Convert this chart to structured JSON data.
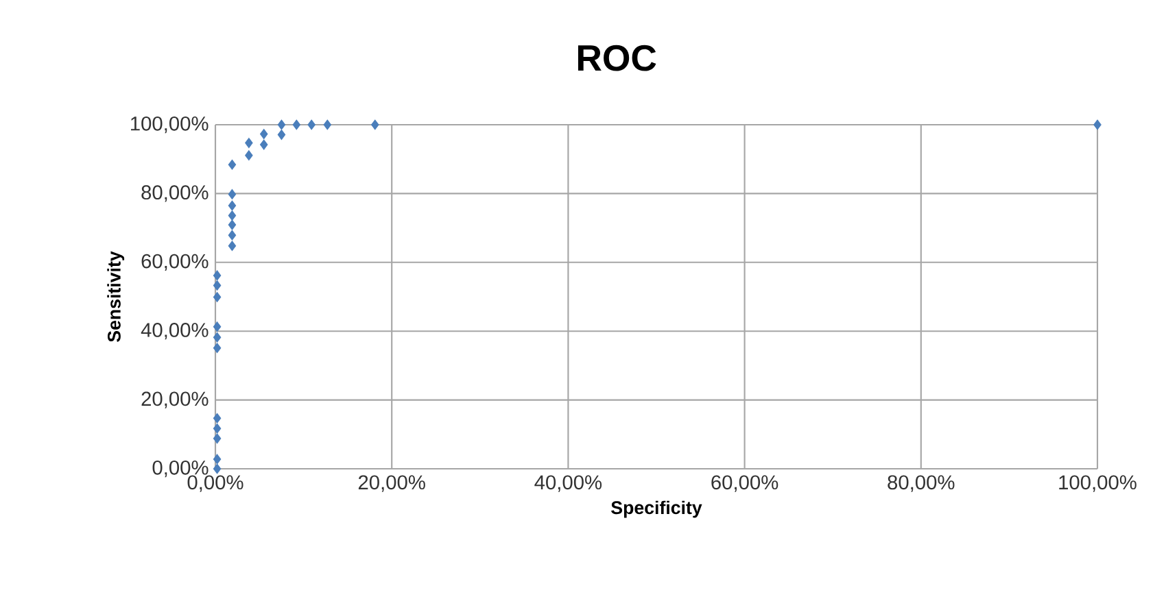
{
  "chart_data": {
    "type": "scatter",
    "title": "ROC",
    "xlabel": "Specificity",
    "ylabel": "Sensitivity",
    "color": "#4a7ebb",
    "marker": "diamond",
    "grid": true,
    "x": [
      0.2,
      0.2,
      0.2,
      0.2,
      0.2,
      0.2,
      0.2,
      0.2,
      0.2,
      0.2,
      0.2,
      1.9,
      1.9,
      1.9,
      1.9,
      1.9,
      1.9,
      1.9,
      3.8,
      3.8,
      5.5,
      5.5,
      7.5,
      7.5,
      9.2,
      10.9,
      12.7,
      18.1,
      100
    ],
    "values": [
      0,
      2.8,
      8.8,
      11.7,
      14.7,
      35.1,
      38.2,
      41.3,
      49.9,
      53.3,
      56.2,
      64.8,
      67.9,
      70.9,
      73.6,
      76.5,
      79.8,
      88.4,
      91.1,
      94.7,
      94.2,
      97.3,
      97.1,
      100,
      100,
      100,
      100,
      100,
      100
    ],
    "xlim": [
      0,
      100
    ],
    "ylim": [
      0,
      100
    ],
    "xticks": [
      {
        "value": 0,
        "label": "0,00%"
      },
      {
        "value": 20,
        "label": "20,00%"
      },
      {
        "value": 40,
        "label": "40,00%"
      },
      {
        "value": 60,
        "label": "60,00%"
      },
      {
        "value": 80,
        "label": "80,00%"
      },
      {
        "value": 100,
        "label": "100,00%"
      }
    ],
    "yticks": [
      {
        "value": 0,
        "label": "0,00%"
      },
      {
        "value": 20,
        "label": "20,00%"
      },
      {
        "value": 40,
        "label": "40,00%"
      },
      {
        "value": 60,
        "label": "60,00%"
      },
      {
        "value": 80,
        "label": "80,00%"
      },
      {
        "value": 100,
        "label": "100,00%"
      }
    ]
  }
}
